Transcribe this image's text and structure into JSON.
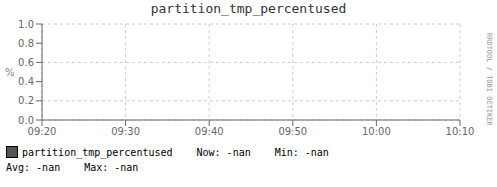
{
  "chart_data": {
    "type": "line",
    "title": "partition_tmp_percentused",
    "y_label": "%",
    "categories": [
      "09:20",
      "09:30",
      "09:40",
      "09:50",
      "10:00",
      "10:10"
    ],
    "series": [
      {
        "name": "partition_tmp_percentused",
        "color": "#555555",
        "values": [
          null,
          null,
          null,
          null,
          null,
          null
        ]
      }
    ],
    "ylim": [
      0.0,
      1.0
    ],
    "yticks": [
      {
        "value": 0,
        "label": "0.0"
      },
      0.2,
      0.4,
      0.6,
      0.8,
      {
        "value": 1,
        "label": "1.0"
      }
    ],
    "grid": true,
    "legend": "bottom",
    "annotations": [
      "Now:",
      "-nan",
      "Min:",
      "-nan",
      "Avg:",
      "-nan",
      "Max:",
      "-nan",
      "RRDTOOL / TOBI OETIKER"
    ]
  }
}
